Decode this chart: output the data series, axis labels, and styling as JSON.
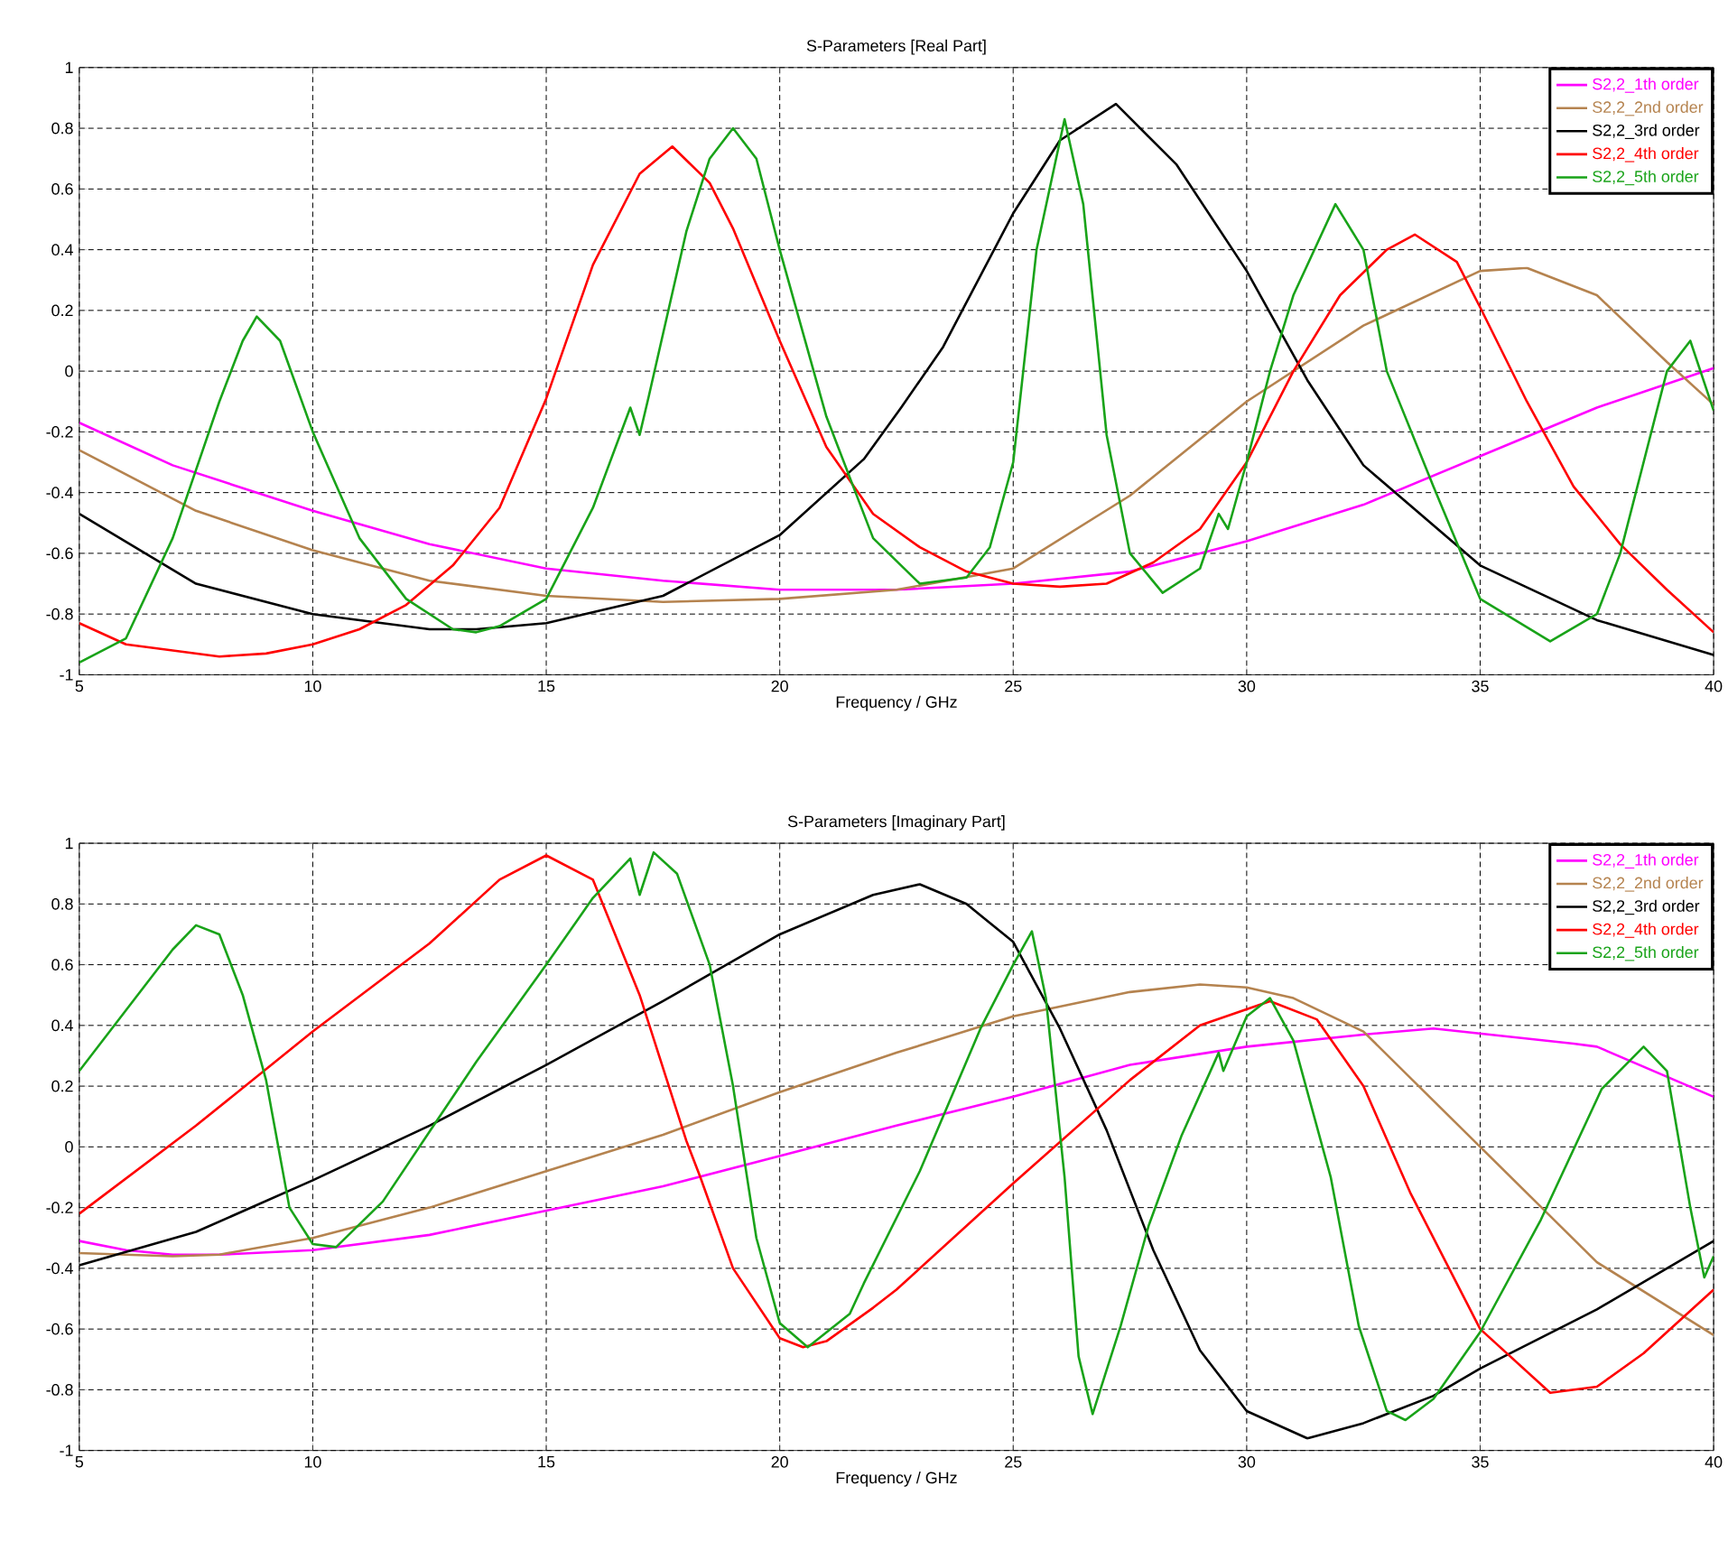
{
  "chart_data": [
    {
      "type": "line",
      "title": "S-Parameters [Real Part]",
      "xlabel": "Frequency / GHz",
      "xlim": [
        5,
        40
      ],
      "ylim": [
        -1,
        1
      ],
      "xticks": [
        5,
        10,
        15,
        20,
        25,
        30,
        35,
        40
      ],
      "yticks": [
        -1,
        -0.8,
        -0.6,
        -0.4,
        -0.2,
        0,
        0.2,
        0.4,
        0.6,
        0.8,
        1
      ],
      "grid": true,
      "legend": "top right",
      "series": [
        {
          "name": "S2,2_1th order",
          "color": "#ff00ff",
          "x": [
            5,
            7,
            10,
            12.5,
            15,
            17.5,
            20,
            22.5,
            25,
            27.5,
            30,
            32.5,
            35,
            37.5,
            40
          ],
          "values": [
            -0.17,
            -0.31,
            -0.46,
            -0.57,
            -0.65,
            -0.69,
            -0.72,
            -0.72,
            -0.7,
            -0.66,
            -0.56,
            -0.44,
            -0.28,
            -0.12,
            0.01
          ]
        },
        {
          "name": "S2,2_2nd order",
          "color": "#b5834f",
          "x": [
            5,
            7.5,
            10,
            12.5,
            15,
            17.5,
            20,
            22.5,
            25,
            27.5,
            30,
            32.5,
            35,
            36,
            37.5,
            39,
            40
          ],
          "values": [
            -0.26,
            -0.46,
            -0.59,
            -0.69,
            -0.74,
            -0.76,
            -0.75,
            -0.72,
            -0.65,
            -0.41,
            -0.1,
            0.15,
            0.33,
            0.34,
            0.25,
            0.03,
            -0.11
          ]
        },
        {
          "name": "S2,2_3rd order",
          "color": "#000000",
          "x": [
            5,
            7.5,
            10,
            12.5,
            13.5,
            15,
            17.5,
            20,
            21.8,
            22.6,
            23.5,
            25,
            26,
            27.2,
            28.5,
            30,
            31.3,
            32.5,
            35,
            37.5,
            40
          ],
          "values": [
            -0.47,
            -0.7,
            -0.8,
            -0.85,
            -0.85,
            -0.83,
            -0.74,
            -0.54,
            -0.29,
            -0.12,
            0.08,
            0.52,
            0.76,
            0.88,
            0.68,
            0.33,
            -0.03,
            -0.31,
            -0.64,
            -0.82,
            -0.935
          ]
        },
        {
          "name": "S2,2_4th order",
          "color": "#ff0000",
          "x": [
            5,
            6,
            8,
            9,
            10,
            11,
            12,
            13,
            14,
            15,
            16,
            17,
            17.7,
            18.5,
            19,
            20,
            21,
            22,
            23,
            24,
            25,
            26,
            27,
            28,
            29,
            30,
            31,
            32,
            33,
            33.6,
            34.5,
            35,
            36,
            37,
            38,
            39,
            40
          ],
          "values": [
            -0.83,
            -0.9,
            -0.94,
            -0.93,
            -0.9,
            -0.85,
            -0.77,
            -0.64,
            -0.45,
            -0.09,
            0.35,
            0.65,
            0.74,
            0.62,
            0.47,
            0.1,
            -0.25,
            -0.47,
            -0.58,
            -0.66,
            -0.7,
            -0.71,
            -0.7,
            -0.63,
            -0.52,
            -0.3,
            0.0,
            0.25,
            0.4,
            0.45,
            0.36,
            0.21,
            -0.1,
            -0.38,
            -0.57,
            -0.72,
            -0.86
          ]
        },
        {
          "name": "S2,2_5th order",
          "color": "#19a319",
          "x": [
            5,
            6,
            7,
            8,
            8.5,
            8.8,
            9.3,
            10,
            11,
            12,
            13,
            13.5,
            14,
            15,
            16,
            16.8,
            17.0,
            17.2,
            18,
            18.5,
            19,
            19.5,
            20,
            21,
            22,
            23,
            24,
            24.5,
            25,
            25.5,
            26.1,
            26.5,
            27,
            27.5,
            28.2,
            29,
            29.4,
            29.6,
            30,
            30.5,
            31,
            31.9,
            32.5,
            33,
            34,
            35,
            36.5,
            37.5,
            38,
            39,
            39.5,
            40
          ],
          "values": [
            -0.96,
            -0.88,
            -0.55,
            -0.1,
            0.1,
            0.18,
            0.1,
            -0.2,
            -0.55,
            -0.75,
            -0.85,
            -0.86,
            -0.84,
            -0.75,
            -0.45,
            -0.12,
            -0.21,
            -0.08,
            0.46,
            0.7,
            0.8,
            0.7,
            0.4,
            -0.15,
            -0.55,
            -0.7,
            -0.68,
            -0.58,
            -0.3,
            0.4,
            0.83,
            0.55,
            -0.21,
            -0.6,
            -0.73,
            -0.65,
            -0.47,
            -0.52,
            -0.3,
            0.0,
            0.25,
            0.55,
            0.4,
            0.0,
            -0.38,
            -0.75,
            -0.89,
            -0.8,
            -0.6,
            0.0,
            0.1,
            -0.13
          ]
        }
      ]
    },
    {
      "type": "line",
      "title": "S-Parameters [Imaginary Part]",
      "xlabel": "Frequency / GHz",
      "xlim": [
        5,
        40
      ],
      "ylim": [
        -1,
        1
      ],
      "xticks": [
        5,
        10,
        15,
        20,
        25,
        30,
        35,
        40
      ],
      "yticks": [
        -1,
        -0.8,
        -0.6,
        -0.4,
        -0.2,
        0,
        0.2,
        0.4,
        0.6,
        0.8,
        1
      ],
      "grid": true,
      "legend": "top right",
      "series": [
        {
          "name": "S2,2_1th order",
          "color": "#ff00ff",
          "x": [
            5,
            6,
            7,
            8,
            10,
            12.5,
            15,
            17.5,
            20,
            22.5,
            25,
            27.5,
            30,
            32.5,
            34,
            37,
            37.5,
            40
          ],
          "values": [
            -0.31,
            -0.34,
            -0.355,
            -0.355,
            -0.34,
            -0.29,
            -0.21,
            -0.13,
            -0.03,
            0.07,
            0.165,
            0.27,
            0.33,
            0.37,
            0.39,
            0.34,
            0.33,
            0.165
          ]
        },
        {
          "name": "S2,2_2nd order",
          "color": "#b5834f",
          "x": [
            5,
            7,
            8,
            10,
            12.5,
            15,
            17.5,
            20,
            22.5,
            25,
            27.5,
            29,
            30,
            31,
            32.5,
            35,
            37.5,
            40
          ],
          "values": [
            -0.35,
            -0.36,
            -0.355,
            -0.3,
            -0.2,
            -0.08,
            0.04,
            0.18,
            0.31,
            0.43,
            0.51,
            0.535,
            0.525,
            0.49,
            0.38,
            0.0,
            -0.38,
            -0.62
          ]
        },
        {
          "name": "S2,2_3rd order",
          "color": "#000000",
          "x": [
            5,
            7.5,
            10,
            12.5,
            15,
            17.5,
            20,
            22,
            23,
            24,
            25,
            26,
            27,
            28,
            29,
            30,
            31.3,
            32.5,
            34,
            35,
            37.5,
            40
          ],
          "values": [
            -0.39,
            -0.28,
            -0.11,
            0.07,
            0.27,
            0.48,
            0.7,
            0.83,
            0.865,
            0.8,
            0.675,
            0.39,
            0.055,
            -0.34,
            -0.67,
            -0.87,
            -0.96,
            -0.91,
            -0.82,
            -0.73,
            -0.535,
            -0.31
          ]
        },
        {
          "name": "S2,2_4th order",
          "color": "#ff0000",
          "x": [
            5,
            7.5,
            10,
            12.5,
            14,
            15,
            16,
            17,
            18,
            18.3,
            19,
            20,
            20.5,
            21,
            22,
            22.5,
            25,
            27.5,
            29,
            30.5,
            31.5,
            32.5,
            33.5,
            35,
            36.5,
            37.5,
            38.5,
            40
          ],
          "values": [
            -0.22,
            0.07,
            0.38,
            0.67,
            0.88,
            0.96,
            0.88,
            0.5,
            0.02,
            -0.1,
            -0.4,
            -0.63,
            -0.66,
            -0.64,
            -0.53,
            -0.47,
            -0.12,
            0.22,
            0.4,
            0.48,
            0.42,
            0.2,
            -0.15,
            -0.6,
            -0.81,
            -0.79,
            -0.68,
            -0.47
          ]
        },
        {
          "name": "S2,2_5th order",
          "color": "#19a319",
          "x": [
            5,
            6,
            7,
            7.5,
            8,
            8.5,
            9,
            9.5,
            10,
            10.5,
            11.5,
            12.5,
            13.5,
            15,
            16,
            16.8,
            17.0,
            17.3,
            17.8,
            18.5,
            19,
            19.5,
            20,
            20.6,
            21.5,
            21.8,
            23,
            24.3,
            25,
            25.4,
            25.7,
            26.1,
            26.4,
            26.7,
            27.3,
            27.9,
            28.6,
            29.4,
            29.5,
            30,
            30.5,
            31,
            31.8,
            32.4,
            33,
            33.4,
            34,
            35,
            36.3,
            37.6,
            38.5,
            39,
            39.5,
            39.8,
            40
          ],
          "values": [
            0.25,
            0.45,
            0.65,
            0.73,
            0.7,
            0.5,
            0.22,
            -0.2,
            -0.32,
            -0.33,
            -0.18,
            0.05,
            0.28,
            0.6,
            0.82,
            0.95,
            0.83,
            0.97,
            0.9,
            0.6,
            0.2,
            -0.3,
            -0.58,
            -0.66,
            -0.55,
            -0.45,
            -0.08,
            0.39,
            0.6,
            0.71,
            0.49,
            -0.1,
            -0.69,
            -0.88,
            -0.59,
            -0.26,
            0.035,
            0.31,
            0.25,
            0.43,
            0.49,
            0.35,
            -0.1,
            -0.59,
            -0.87,
            -0.9,
            -0.83,
            -0.61,
            -0.24,
            0.19,
            0.33,
            0.25,
            -0.2,
            -0.43,
            -0.36
          ]
        }
      ]
    }
  ]
}
